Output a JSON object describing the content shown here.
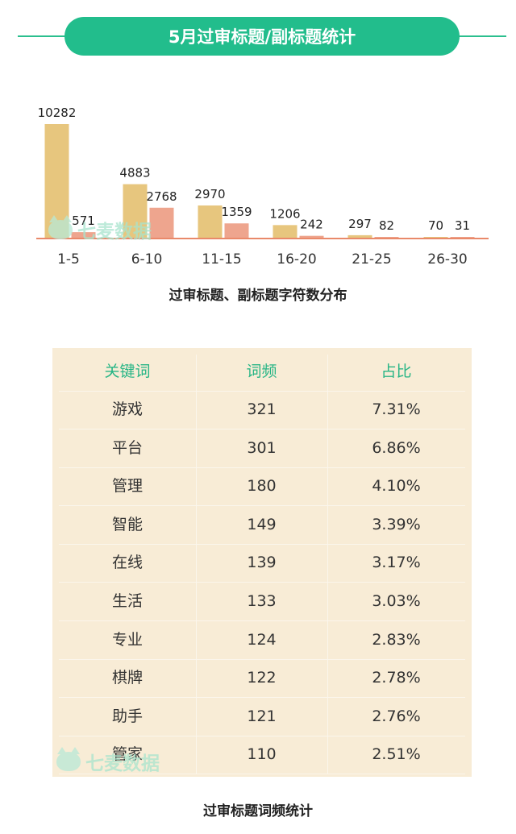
{
  "header": {
    "title": "5月过审标题/副标题统计"
  },
  "chart_data": {
    "type": "bar",
    "title": "过审标题、副标题字符数分布",
    "categories": [
      "1-5",
      "6-10",
      "11-15",
      "16-20",
      "21-25",
      "26-30"
    ],
    "series": [
      {
        "values": [
          10282,
          4883,
          2970,
          1206,
          297,
          70
        ],
        "color": "#e7c67e"
      },
      {
        "values": [
          571,
          2768,
          1359,
          242,
          82,
          31
        ],
        "color": "#eea58e"
      }
    ],
    "axis_color": "#e9896a",
    "ylim": [
      0,
      10282
    ]
  },
  "watermark": {
    "text": "七麦数据"
  },
  "table": {
    "caption": "过审标题词频统计",
    "headers": [
      "关键词",
      "词频",
      "占比"
    ],
    "rows": [
      [
        "游戏",
        "321",
        "7.31%"
      ],
      [
        "平台",
        "301",
        "6.86%"
      ],
      [
        "管理",
        "180",
        "4.10%"
      ],
      [
        "智能",
        "149",
        "3.39%"
      ],
      [
        "在线",
        "139",
        "3.17%"
      ],
      [
        "生活",
        "133",
        "3.03%"
      ],
      [
        "专业",
        "124",
        "2.83%"
      ],
      [
        "棋牌",
        "122",
        "2.78%"
      ],
      [
        "助手",
        "121",
        "2.76%"
      ],
      [
        "管家",
        "110",
        "2.51%"
      ]
    ]
  }
}
